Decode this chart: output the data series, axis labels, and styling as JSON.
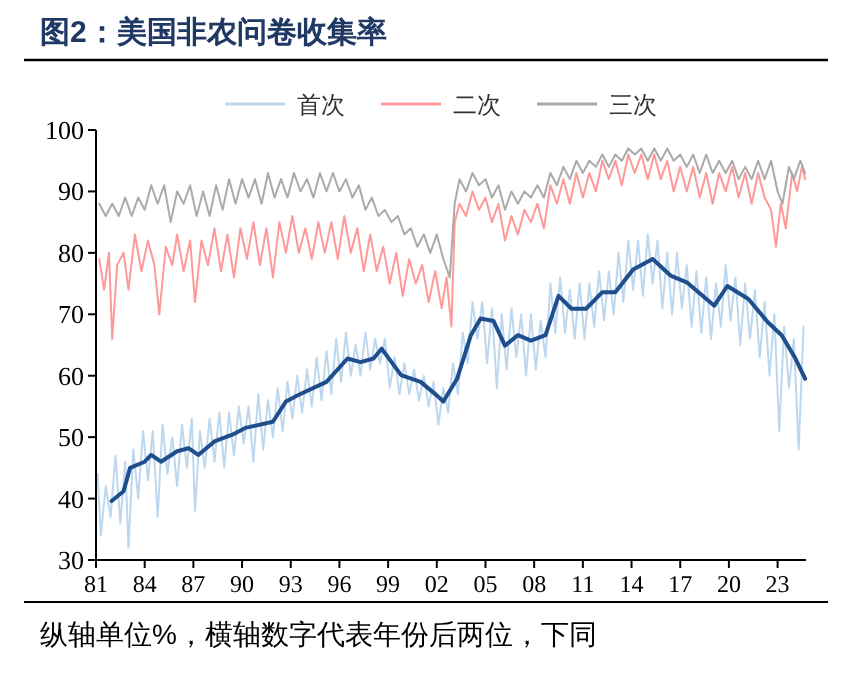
{
  "chart_data": {
    "type": "line",
    "title": "图2：美国非农问卷收集率",
    "annotations": [
      "纵轴单位%，横轴数字代表年份后两位，下同"
    ],
    "xlim": [
      1981,
      2024.75
    ],
    "xticks": [
      {
        "value": 1981,
        "label": "81"
      },
      {
        "value": 1984,
        "label": "84"
      },
      {
        "value": 1987,
        "label": "87"
      },
      {
        "value": 1990,
        "label": "90"
      },
      {
        "value": 1993,
        "label": "93"
      },
      {
        "value": 1996,
        "label": "96"
      },
      {
        "value": 1999,
        "label": "99"
      },
      {
        "value": 2002,
        "label": "02"
      },
      {
        "value": 2005,
        "label": "05"
      },
      {
        "value": 2008,
        "label": "08"
      },
      {
        "value": 2011,
        "label": "11"
      },
      {
        "value": 2014,
        "label": "14"
      },
      {
        "value": 2017,
        "label": "17"
      },
      {
        "value": 2020,
        "label": "20"
      },
      {
        "value": 2023,
        "label": "23"
      }
    ],
    "ylim": [
      30,
      100
    ],
    "yticks": [
      30,
      40,
      50,
      60,
      70,
      80,
      90,
      100
    ],
    "legend": "top",
    "grid": false,
    "series": [
      {
        "name": "首次",
        "color": "#bdd7ee",
        "x": [
          1981.1,
          1981.3,
          1981.6,
          1981.9,
          1982.2,
          1982.5,
          1982.8,
          1983,
          1983.3,
          1983.6,
          1983.9,
          1984.2,
          1984.5,
          1984.8,
          1985.1,
          1985.4,
          1985.7,
          1986,
          1986.3,
          1986.6,
          1986.9,
          1987.1,
          1987.4,
          1987.7,
          1988,
          1988.3,
          1988.6,
          1988.9,
          1989.2,
          1989.5,
          1989.8,
          1990.1,
          1990.4,
          1990.7,
          1991,
          1991.3,
          1991.6,
          1991.9,
          1992.2,
          1992.5,
          1992.8,
          1993.1,
          1993.4,
          1993.7,
          1994,
          1994.3,
          1994.6,
          1994.9,
          1995.2,
          1995.5,
          1995.8,
          1996.1,
          1996.4,
          1996.7,
          1997,
          1997.3,
          1997.6,
          1997.9,
          1998.2,
          1998.5,
          1998.8,
          1999.1,
          1999.4,
          1999.7,
          2000,
          2000.3,
          2000.6,
          2000.9,
          2001.2,
          2001.5,
          2001.8,
          2002.1,
          2002.4,
          2002.7,
          2003,
          2003.3,
          2003.6,
          2003.9,
          2004.2,
          2004.5,
          2004.8,
          2005.1,
          2005.4,
          2005.7,
          2006,
          2006.3,
          2006.6,
          2006.9,
          2007.2,
          2007.5,
          2007.8,
          2008.1,
          2008.4,
          2008.7,
          2009,
          2009.3,
          2009.6,
          2009.9,
          2010.2,
          2010.5,
          2010.8,
          2011.1,
          2011.4,
          2011.7,
          2012,
          2012.3,
          2012.6,
          2012.9,
          2013.2,
          2013.5,
          2013.8,
          2014.1,
          2014.4,
          2014.7,
          2015,
          2015.3,
          2015.6,
          2015.9,
          2016.2,
          2016.5,
          2016.8,
          2017.1,
          2017.4,
          2017.7,
          2018,
          2018.3,
          2018.6,
          2018.9,
          2019.2,
          2019.5,
          2019.8,
          2020.1,
          2020.4,
          2020.7,
          2021,
          2021.3,
          2021.6,
          2021.9,
          2022.2,
          2022.5,
          2022.8,
          2023.1,
          2023.4,
          2023.7,
          2024,
          2024.3,
          2024.6
        ],
        "values": [
          44,
          34,
          42,
          37,
          47,
          36,
          46,
          32,
          48,
          40,
          51,
          43,
          51,
          37,
          52,
          44,
          50,
          42,
          52,
          45,
          53,
          38,
          51,
          45,
          53,
          46,
          54,
          45,
          54,
          47,
          55,
          49,
          55,
          46,
          57,
          48,
          56,
          50,
          58,
          51,
          59,
          53,
          60,
          54,
          61,
          55,
          63,
          56,
          64,
          57,
          66,
          59,
          67,
          60,
          65,
          60,
          67,
          61,
          66,
          62,
          66,
          58,
          63,
          57,
          62,
          57,
          61,
          56,
          60,
          55,
          59,
          52,
          58,
          54,
          62,
          57,
          67,
          62,
          72,
          66,
          72,
          62,
          71,
          58,
          70,
          61,
          71,
          63,
          70,
          60,
          70,
          61,
          69,
          63,
          75,
          67,
          76,
          67,
          74,
          66,
          75,
          66,
          75,
          68,
          77,
          69,
          77,
          70,
          80,
          72,
          82,
          74,
          82,
          73,
          83,
          75,
          82,
          71,
          80,
          70,
          80,
          71,
          78,
          68,
          77,
          67,
          76,
          66,
          75,
          68,
          78,
          69,
          76,
          65,
          75,
          66,
          74,
          63,
          72,
          60,
          70,
          51,
          68,
          58,
          66,
          48,
          68
        ]
      },
      {
        "name": "二次",
        "color": "#ff9999",
        "x": [
          1981.2,
          1981.5,
          1981.8,
          1982,
          1982.3,
          1982.7,
          1983,
          1983.4,
          1983.8,
          1984.2,
          1984.6,
          1984.9,
          1985.3,
          1985.7,
          1986,
          1986.4,
          1986.8,
          1987.1,
          1987.5,
          1987.9,
          1988.3,
          1988.7,
          1989.1,
          1989.5,
          1989.9,
          1990.3,
          1990.7,
          1991.1,
          1991.5,
          1991.9,
          1992.3,
          1992.7,
          1993.1,
          1993.5,
          1993.9,
          1994.3,
          1994.7,
          1995.1,
          1995.5,
          1995.9,
          1996.3,
          1996.7,
          1997.1,
          1997.5,
          1997.9,
          1998.3,
          1998.7,
          1999.1,
          1999.5,
          1999.9,
          2000.3,
          2000.7,
          2001.1,
          2001.5,
          2001.9,
          2002.3,
          2002.6,
          2002.9,
          2003.1,
          2003.4,
          2003.8,
          2004.2,
          2004.6,
          2005,
          2005.4,
          2005.8,
          2006.2,
          2006.6,
          2007,
          2007.4,
          2007.8,
          2008.2,
          2008.6,
          2009,
          2009.4,
          2009.8,
          2010.2,
          2010.6,
          2011,
          2011.4,
          2011.8,
          2012.2,
          2012.6,
          2013,
          2013.4,
          2013.8,
          2014.2,
          2014.6,
          2015,
          2015.4,
          2015.8,
          2016.2,
          2016.6,
          2017,
          2017.4,
          2017.8,
          2018.2,
          2018.6,
          2019,
          2019.4,
          2019.8,
          2020.2,
          2020.6,
          2021,
          2021.4,
          2021.8,
          2022.2,
          2022.6,
          2022.9,
          2023.2,
          2023.5,
          2023.9,
          2024.2,
          2024.5,
          2024.7
        ],
        "values": [
          79,
          74,
          80,
          66,
          78,
          80,
          74,
          83,
          77,
          82,
          78,
          70,
          81,
          78,
          83,
          77,
          82,
          72,
          82,
          78,
          84,
          77,
          83,
          76,
          84,
          79,
          85,
          78,
          84,
          76,
          85,
          80,
          86,
          80,
          84,
          79,
          85,
          80,
          85,
          79,
          86,
          80,
          84,
          77,
          83,
          77,
          81,
          75,
          80,
          73,
          79,
          75,
          78,
          72,
          77,
          71,
          76,
          68,
          85,
          88,
          86,
          90,
          87,
          89,
          85,
          88,
          82,
          86,
          83,
          87,
          85,
          88,
          84,
          91,
          88,
          92,
          88,
          93,
          89,
          93,
          90,
          95,
          92,
          95,
          91,
          96,
          93,
          96,
          92,
          96,
          92,
          95,
          90,
          94,
          90,
          94,
          89,
          93,
          88,
          93,
          90,
          94,
          89,
          93,
          88,
          93,
          89,
          87,
          81,
          88,
          84,
          93,
          90,
          94,
          92
        ]
      },
      {
        "name": "三次",
        "color": "#aaaaaa",
        "x": [
          1981.2,
          1981.6,
          1982,
          1982.4,
          1982.8,
          1983.2,
          1983.6,
          1984,
          1984.4,
          1984.8,
          1985.2,
          1985.6,
          1986,
          1986.4,
          1986.8,
          1987.2,
          1987.6,
          1988,
          1988.4,
          1988.8,
          1989.2,
          1989.6,
          1990,
          1990.4,
          1990.8,
          1991.2,
          1991.6,
          1992,
          1992.4,
          1992.8,
          1993.2,
          1993.6,
          1994,
          1994.4,
          1994.8,
          1995.2,
          1995.6,
          1996,
          1996.4,
          1996.8,
          1997.2,
          1997.6,
          1998,
          1998.4,
          1998.8,
          1999.2,
          1999.6,
          2000,
          2000.4,
          2000.8,
          2001.2,
          2001.6,
          2002,
          2002.4,
          2002.8,
          2003.1,
          2003.4,
          2003.8,
          2004.2,
          2004.6,
          2005,
          2005.4,
          2005.8,
          2006.2,
          2006.6,
          2007,
          2007.4,
          2007.8,
          2008.2,
          2008.6,
          2009,
          2009.4,
          2009.8,
          2010.2,
          2010.6,
          2011,
          2011.4,
          2011.8,
          2012.2,
          2012.6,
          2013,
          2013.4,
          2013.8,
          2014.2,
          2014.6,
          2015,
          2015.4,
          2015.8,
          2016.2,
          2016.6,
          2017,
          2017.4,
          2017.8,
          2018.2,
          2018.6,
          2019,
          2019.4,
          2019.8,
          2020.2,
          2020.6,
          2021,
          2021.4,
          2021.8,
          2022.2,
          2022.6,
          2023,
          2023.3,
          2023.7,
          2024,
          2024.4,
          2024.7
        ],
        "values": [
          88,
          86,
          88,
          86,
          89,
          86,
          89,
          87,
          91,
          88,
          91,
          85,
          90,
          88,
          91,
          86,
          90,
          86,
          91,
          87,
          92,
          88,
          92,
          89,
          92,
          88,
          93,
          89,
          92,
          89,
          93,
          90,
          92,
          89,
          93,
          90,
          93,
          90,
          92,
          89,
          91,
          87,
          89,
          86,
          87,
          85,
          86,
          83,
          84,
          81,
          83,
          80,
          83,
          79,
          76,
          88,
          92,
          90,
          93,
          91,
          92,
          89,
          91,
          87,
          90,
          88,
          90,
          89,
          91,
          89,
          93,
          91,
          94,
          92,
          95,
          93,
          95,
          94,
          96,
          94,
          96,
          95,
          97,
          96,
          97,
          95,
          97,
          95,
          97,
          95,
          96,
          94,
          96,
          93,
          96,
          93,
          95,
          93,
          95,
          92,
          94,
          92,
          95,
          92,
          95,
          90,
          88,
          94,
          92,
          95,
          93
        ]
      },
      {
        "color": "#1f4e8c",
        "x": [
          1981.96,
          1982.7,
          1983.1,
          1984,
          1984.4,
          1985,
          1986,
          1986.7,
          1987.3,
          1988.3,
          1989.4,
          1990.2,
          1991.9,
          1992.7,
          1993.5,
          1995.2,
          1996.5,
          1997.3,
          1998.1,
          1998.6,
          1999.8,
          2001,
          2002,
          2002.4,
          2003.25,
          2004.1,
          2004.7,
          2005.5,
          2006.2,
          2007,
          2007.8,
          2008.7,
          2009.5,
          2010.3,
          2011.2,
          2012.2,
          2013,
          2014.1,
          2015.3,
          2016.4,
          2017.4,
          2019.1,
          2019.9,
          2021.2,
          2022.4,
          2023.25,
          2024.1,
          2024.7
        ],
        "values": [
          39.6,
          41.2,
          45,
          46,
          47.1,
          46,
          47.7,
          48.2,
          47.1,
          49.3,
          50.4,
          51.5,
          52.5,
          55.8,
          56.9,
          59,
          62.8,
          62.2,
          62.8,
          64.4,
          60.1,
          59,
          56.8,
          55.8,
          59.5,
          66.6,
          69.3,
          68.9,
          64.9,
          66.6,
          65.7,
          66.6,
          73,
          70.9,
          70.9,
          73.6,
          73.6,
          77.3,
          79,
          76.3,
          75.2,
          71.4,
          74.6,
          72.5,
          68.7,
          66.6,
          62.8,
          59.5
        ]
      }
    ]
  }
}
